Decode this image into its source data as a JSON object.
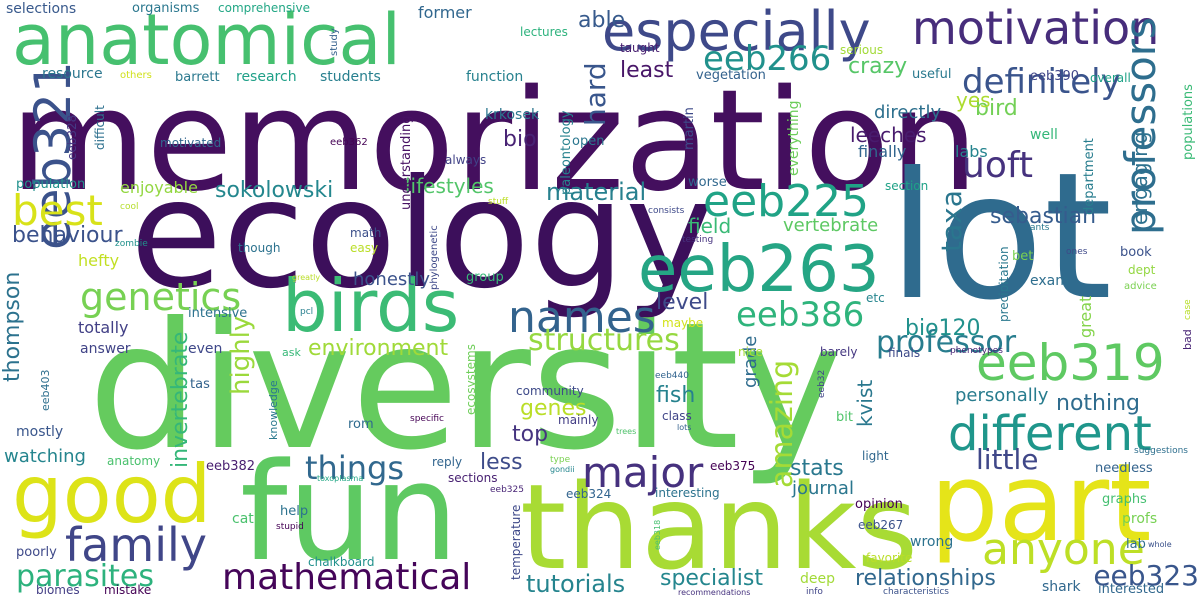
{
  "words": [
    {
      "text": "memorization",
      "color": "#440f5e"
    },
    {
      "text": "diversity",
      "color": "#65cb5e"
    },
    {
      "text": "ecology",
      "color": "#3c0f5b"
    },
    {
      "text": "lot",
      "color": "#2f6b8e"
    },
    {
      "text": "fun",
      "color": "#5ec962"
    },
    {
      "text": "thanks",
      "color": "#a8db34"
    },
    {
      "text": "part",
      "color": "#e5e419"
    },
    {
      "text": "anatomical",
      "color": "#46c06f"
    },
    {
      "text": "especially",
      "color": "#3e4989"
    },
    {
      "text": "motivation",
      "color": "#472d7b"
    },
    {
      "text": "eeb263",
      "color": "#25a584"
    },
    {
      "text": "good",
      "color": "#dde318"
    },
    {
      "text": "birds",
      "color": "#3bbb75"
    },
    {
      "text": "eeb321",
      "color": "#3b528b"
    },
    {
      "text": "eeb319",
      "color": "#5ec962"
    },
    {
      "text": "eeb225",
      "color": "#20a386"
    },
    {
      "text": "different",
      "color": "#1f968b"
    },
    {
      "text": "major",
      "color": "#46317e"
    },
    {
      "text": "family",
      "color": "#404688"
    },
    {
      "text": "mathematical",
      "color": "#450559"
    },
    {
      "text": "anyone",
      "color": "#bddf26"
    },
    {
      "text": "names",
      "color": "#33638d"
    },
    {
      "text": "best",
      "color": "#d8e219"
    },
    {
      "text": "genetics",
      "color": "#77d153"
    },
    {
      "text": "professors",
      "color": "#2e6e8e"
    },
    {
      "text": "definitely",
      "color": "#3a548c"
    },
    {
      "text": "eeb266",
      "color": "#21918c"
    },
    {
      "text": "uoft",
      "color": "#46327e"
    },
    {
      "text": "eeb386",
      "color": "#2fb47c"
    },
    {
      "text": "structures",
      "color": "#95d840"
    },
    {
      "text": "professor",
      "color": "#287d8e"
    },
    {
      "text": "things",
      "color": "#31688e"
    },
    {
      "text": "parasites",
      "color": "#2db27d"
    },
    {
      "text": "amazing",
      "color": "#a5db36"
    },
    {
      "text": "taxa",
      "color": "#2a768e"
    },
    {
      "text": "highly",
      "color": "#9bd93c"
    },
    {
      "text": "hard",
      "color": "#39568c"
    },
    {
      "text": "little",
      "color": "#3f4788"
    },
    {
      "text": "invertebrate",
      "color": "#35b779"
    },
    {
      "text": "eeb323",
      "color": "#39568c"
    },
    {
      "text": "relationships",
      "color": "#31688e"
    },
    {
      "text": "tutorials",
      "color": "#25848e"
    },
    {
      "text": "specialist",
      "color": "#24868e"
    },
    {
      "text": "thompson",
      "color": "#2c728e"
    },
    {
      "text": "sokolowski",
      "color": "#24878e"
    },
    {
      "text": "lifestyles",
      "color": "#52c569"
    },
    {
      "text": "material",
      "color": "#27808e"
    },
    {
      "text": "behaviour",
      "color": "#3b528b"
    },
    {
      "text": "environment",
      "color": "#a0da39"
    },
    {
      "text": "crazy",
      "color": "#56c667"
    },
    {
      "text": "bird",
      "color": "#73d056"
    },
    {
      "text": "engaging",
      "color": "#2d718e"
    },
    {
      "text": "kvist",
      "color": "#2a788e"
    },
    {
      "text": "sebastian",
      "color": "#365c8d"
    },
    {
      "text": "nothing",
      "color": "#2f6c8e"
    },
    {
      "text": "stats",
      "color": "#2a788e"
    },
    {
      "text": "level",
      "color": "#3e4a89"
    },
    {
      "text": "least",
      "color": "#481668"
    },
    {
      "text": "journal",
      "color": "#2a768e"
    },
    {
      "text": "genes",
      "color": "#bade28"
    },
    {
      "text": "fish",
      "color": "#26828e"
    },
    {
      "text": "top",
      "color": "#463480"
    },
    {
      "text": "less",
      "color": "#3e4c8a"
    },
    {
      "text": "bio",
      "color": "#482374"
    },
    {
      "text": "bio120",
      "color": "#21918c"
    },
    {
      "text": "able",
      "color": "#375a8c"
    },
    {
      "text": "field",
      "color": "#3aba76"
    },
    {
      "text": "leeches",
      "color": "#481b6d"
    },
    {
      "text": "watching",
      "color": "#25858e"
    },
    {
      "text": "yes",
      "color": "#addc30"
    },
    {
      "text": "grade",
      "color": "#2f6c8e"
    },
    {
      "text": "personally",
      "color": "#287c8e"
    },
    {
      "text": "vertebrate",
      "color": "#5dc863"
    },
    {
      "text": "directly",
      "color": "#2d708e"
    },
    {
      "text": "honestly",
      "color": "#3b528b"
    },
    {
      "text": "totally",
      "color": "#424086"
    },
    {
      "text": "enjoyable",
      "color": "#93d741"
    },
    {
      "text": "hefty",
      "color": "#c2df23"
    },
    {
      "text": "finally",
      "color": "#32658e"
    },
    {
      "text": "labs",
      "color": "#25848e"
    },
    {
      "text": "everything",
      "color": "#6ccd5a"
    },
    {
      "text": "population",
      "color": "#21918c"
    },
    {
      "text": "selections",
      "color": "#38598c"
    },
    {
      "text": "organisms",
      "color": "#2a778e"
    },
    {
      "text": "comprehensive",
      "color": "#22a785"
    },
    {
      "text": "former",
      "color": "#31678e"
    },
    {
      "text": "lectures",
      "color": "#2db27d"
    },
    {
      "text": "resource",
      "color": "#2a768e"
    },
    {
      "text": "barrett",
      "color": "#2a788e"
    },
    {
      "text": "research",
      "color": "#1fa088"
    },
    {
      "text": "students",
      "color": "#277f8e"
    },
    {
      "text": "function",
      "color": "#26818e"
    },
    {
      "text": "vegetation",
      "color": "#33628d"
    },
    {
      "text": "useful",
      "color": "#29798e"
    },
    {
      "text": "eeb390",
      "color": "#404588"
    },
    {
      "text": "overall",
      "color": "#1fa287"
    },
    {
      "text": "taught",
      "color": "#482071"
    },
    {
      "text": "serious",
      "color": "#a2da37"
    },
    {
      "text": "eeb328",
      "color": "#443983"
    },
    {
      "text": "motivated",
      "color": "#31668e"
    },
    {
      "text": "eeb362",
      "color": "#440154"
    },
    {
      "text": "always",
      "color": "#414287"
    },
    {
      "text": "open",
      "color": "#2a768e"
    },
    {
      "text": "krkosek",
      "color": "#2a768e"
    },
    {
      "text": "martin",
      "color": "#3e4a89"
    },
    {
      "text": "understanding",
      "color": "#471063"
    },
    {
      "text": "paleontology",
      "color": "#26828e"
    },
    {
      "text": "difficult",
      "color": "#2d708e"
    },
    {
      "text": "study",
      "color": "#34608d"
    },
    {
      "text": "others",
      "color": "#d0e11c"
    },
    {
      "text": "worse",
      "color": "#31688e"
    },
    {
      "text": "section",
      "color": "#1fa287"
    },
    {
      "text": "department",
      "color": "#287d8e"
    },
    {
      "text": "great",
      "color": "#84d44b"
    },
    {
      "text": "well",
      "color": "#35b779"
    },
    {
      "text": "populations",
      "color": "#3aba76"
    },
    {
      "text": "precipitation",
      "color": "#2a788e"
    },
    {
      "text": "exam",
      "color": "#2e6e8e"
    },
    {
      "text": "bet",
      "color": "#7ad151"
    },
    {
      "text": "dept",
      "color": "#93d741"
    },
    {
      "text": "book",
      "color": "#3b528b"
    },
    {
      "text": "advice",
      "color": "#7ad151"
    },
    {
      "text": "ones",
      "color": "#3e4989"
    },
    {
      "text": "case",
      "color": "#b8de29"
    },
    {
      "text": "bad",
      "color": "#482475"
    },
    {
      "text": "math",
      "color": "#3c508b"
    },
    {
      "text": "easy",
      "color": "#bade28"
    },
    {
      "text": "though",
      "color": "#2c728e"
    },
    {
      "text": "cool",
      "color": "#b5de2b"
    },
    {
      "text": "zombie",
      "color": "#21918c"
    },
    {
      "text": "stuff",
      "color": "#bddf26"
    },
    {
      "text": "consists",
      "color": "#3e4989"
    },
    {
      "text": "testing",
      "color": "#46327e"
    },
    {
      "text": "ants",
      "color": "#2a788e"
    },
    {
      "text": "phylogenetic",
      "color": "#3e4989"
    },
    {
      "text": "greatly",
      "color": "#bade28"
    },
    {
      "text": "group",
      "color": "#37b878"
    },
    {
      "text": "etc",
      "color": "#25858e"
    },
    {
      "text": "pcl",
      "color": "#277f8e"
    },
    {
      "text": "intensive",
      "color": "#2c728e"
    },
    {
      "text": "maybe",
      "color": "#d2e21b"
    },
    {
      "text": "nice",
      "color": "#a8db34"
    },
    {
      "text": "barely",
      "color": "#453781"
    },
    {
      "text": "finals",
      "color": "#3e4a89"
    },
    {
      "text": "phenotypes",
      "color": "#482576"
    },
    {
      "text": "answer",
      "color": "#414487"
    },
    {
      "text": "even",
      "color": "#3f4889"
    },
    {
      "text": "ask",
      "color": "#37b878"
    },
    {
      "text": "tas",
      "color": "#33638d"
    },
    {
      "text": "knowledge",
      "color": "#2a788e"
    },
    {
      "text": "ecosystems",
      "color": "#6ece58"
    },
    {
      "text": "eeb440",
      "color": "#32648e"
    },
    {
      "text": "eeb32",
      "color": "#404588"
    },
    {
      "text": "bit",
      "color": "#50c46a"
    },
    {
      "text": "eeb403",
      "color": "#2e6f8e"
    },
    {
      "text": "mostly",
      "color": "#39568c"
    },
    {
      "text": "community",
      "color": "#3e4a89"
    },
    {
      "text": "mainly",
      "color": "#433e85"
    },
    {
      "text": "class",
      "color": "#404588"
    },
    {
      "text": "lots",
      "color": "#34618d"
    },
    {
      "text": "trees",
      "color": "#4fc16b"
    },
    {
      "text": "rom",
      "color": "#2f6b8e"
    },
    {
      "text": "specific",
      "color": "#440154"
    },
    {
      "text": "anatomy",
      "color": "#4ac16d"
    },
    {
      "text": "eeb382",
      "color": "#481f70"
    },
    {
      "text": "reply",
      "color": "#32658e"
    },
    {
      "text": "type",
      "color": "#7ad151"
    },
    {
      "text": "gondii",
      "color": "#24868e"
    },
    {
      "text": "toxoplasma",
      "color": "#22a785"
    },
    {
      "text": "eeb375",
      "color": "#440154"
    },
    {
      "text": "interesting",
      "color": "#2c738e"
    },
    {
      "text": "light",
      "color": "#31678e"
    },
    {
      "text": "suggestions",
      "color": "#2e6f8e"
    },
    {
      "text": "needless",
      "color": "#33638d"
    },
    {
      "text": "sections",
      "color": "#482172"
    },
    {
      "text": "eeb324",
      "color": "#32648e"
    },
    {
      "text": "eeb325",
      "color": "#482576"
    },
    {
      "text": "temperature",
      "color": "#3e4989"
    },
    {
      "text": "eeb318",
      "color": "#46c06f"
    },
    {
      "text": "opinion",
      "color": "#440154"
    },
    {
      "text": "graphs",
      "color": "#44bf70"
    },
    {
      "text": "eeb267",
      "color": "#3b528b"
    },
    {
      "text": "wrong",
      "color": "#2c728e"
    },
    {
      "text": "profs",
      "color": "#77d153"
    },
    {
      "text": "cat",
      "color": "#4ac16d"
    },
    {
      "text": "help",
      "color": "#2c728e"
    },
    {
      "text": "stupid",
      "color": "#440154"
    },
    {
      "text": "favorite",
      "color": "#bade28"
    },
    {
      "text": "lab",
      "color": "#2e6f8e"
    },
    {
      "text": "whole",
      "color": "#3b528b"
    },
    {
      "text": "poorly",
      "color": "#3e4989"
    },
    {
      "text": "chalkboard",
      "color": "#21918c"
    },
    {
      "text": "deep",
      "color": "#a2da37"
    },
    {
      "text": "shark",
      "color": "#31688e"
    },
    {
      "text": "biomes",
      "color": "#433e85"
    },
    {
      "text": "mistake",
      "color": "#440154"
    },
    {
      "text": "recommendations",
      "color": "#46327e"
    },
    {
      "text": "info",
      "color": "#404588"
    },
    {
      "text": "characteristics",
      "color": "#3b528b"
    },
    {
      "text": "interested",
      "color": "#31688e"
    }
  ]
}
